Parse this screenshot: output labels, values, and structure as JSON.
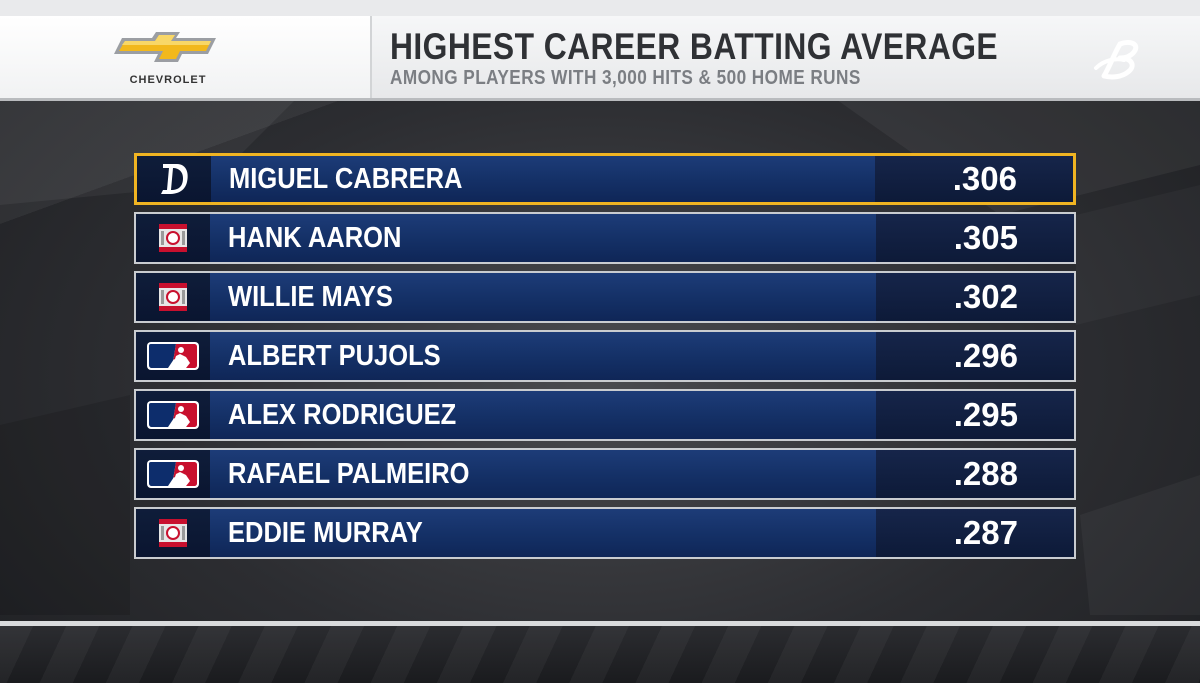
{
  "sponsor": {
    "name": "CHEVROLET",
    "logo_icon": "chevrolet-bowtie-icon",
    "logo_color": "#f2b81c"
  },
  "header": {
    "title": "HIGHEST CAREER BATTING AVERAGE",
    "subtitle": "AMONG PLAYERS WITH 3,000 HITS & 500 HOME RUNS",
    "brand_icon": "bally-sports-b-icon"
  },
  "colors": {
    "highlight": "#f0b422",
    "row_blue": "#143066",
    "row_dark": "#0d1a38"
  },
  "rows": [
    {
      "name": "MIGUEL CABRERA",
      "value": ".306",
      "icon": "tigers-d-icon",
      "highlight": true
    },
    {
      "name": "HANK AARON",
      "value": ".305",
      "icon": "hall-of-fame-icon"
    },
    {
      "name": "WILLIE MAYS",
      "value": ".302",
      "icon": "hall-of-fame-icon"
    },
    {
      "name": "ALBERT PUJOLS",
      "value": ".296",
      "icon": "mlb-logo-icon"
    },
    {
      "name": "ALEX RODRIGUEZ",
      "value": ".295",
      "icon": "mlb-logo-icon"
    },
    {
      "name": "RAFAEL PALMEIRO",
      "value": ".288",
      "icon": "mlb-logo-icon"
    },
    {
      "name": "EDDIE MURRAY",
      "value": ".287",
      "icon": "hall-of-fame-icon"
    }
  ]
}
